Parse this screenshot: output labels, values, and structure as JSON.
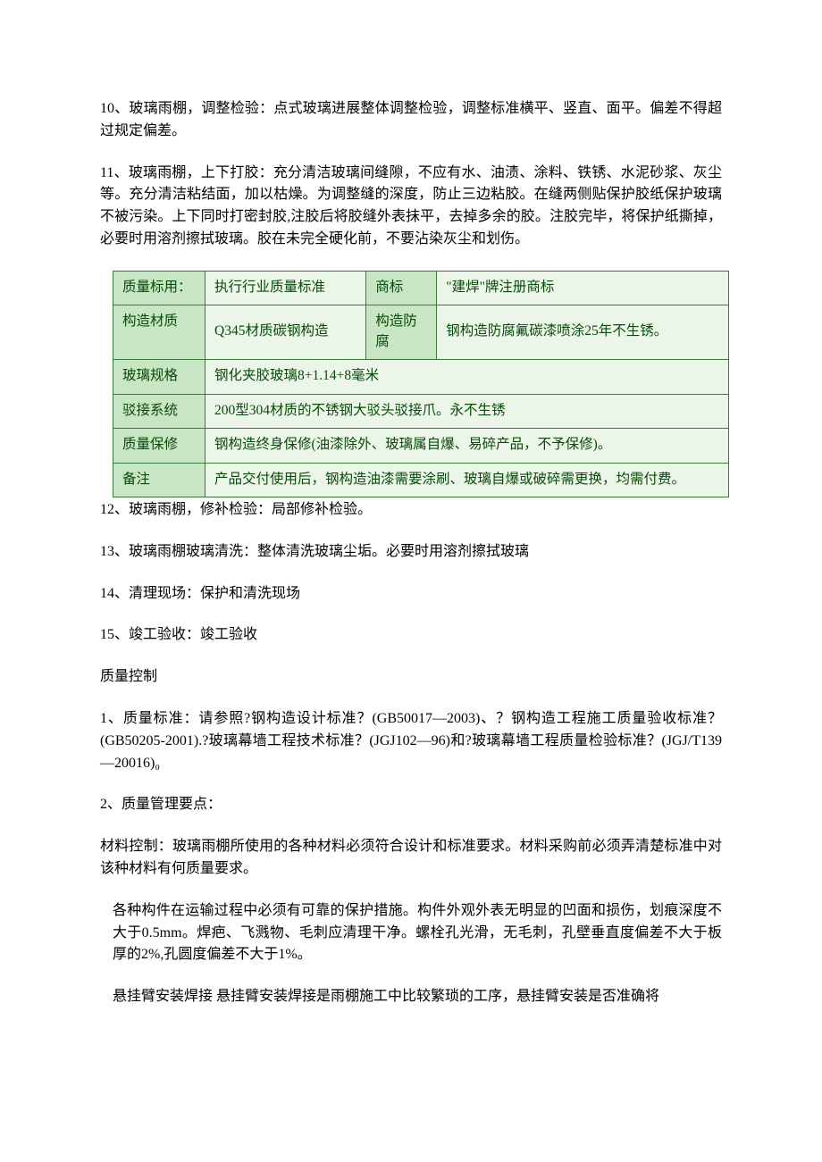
{
  "p10": "10、玻璃雨棚，调整检验：点式玻璃进展整体调整检验，调整标准横平、竖直、面平。偏差不得超过规定偏差。",
  "p11": "11、玻璃雨棚，上下打胶：充分清洁玻璃间缝隙，不应有水、油渍、涂料、铁锈、水泥砂浆、灰尘等。充分清洁粘结面，加以枯燥。为调整缝的深度，防止三边粘胶。在缝两侧贴保护胶纸保护玻璃不被污染。上下同时打密封胶,注胶后将胶缝外表抹平，去掉多余的胶。注胶完毕，将保护纸撕掉，必要时用溶剂擦拭玻璃。胶在未完全硬化前，不要沾染灰尘和划伤。",
  "table": {
    "r1c1": "质量标用：",
    "r1c2": "执行行业质量标准",
    "r1c3": "商标",
    "r1c4": "\"建焊\"牌注册商标",
    "r2c1": "构造材质",
    "r2c2": "Q345材质碳钢构造",
    "r2c3": "构造防腐",
    "r2c4": "钢构造防腐氟碳漆喷涂25年不生锈。",
    "r3c1": "玻璃规格",
    "r3c2": "钢化夹胶玻璃8+1.14+8毫米",
    "r4c1": "驳接系统",
    "r4c2": "200型304材质的不锈钢大驳头驳接爪。永不生锈",
    "r5c1": "质量保修",
    "r5c2": "钢构造终身保修(油漆除外、玻璃属自爆、易碎产品，不予保修)。",
    "r6c1": "备注",
    "r6c2": "产品交付使用后，钢构造油漆需要涂刷、玻璃自爆或破碎需更换，均需付费。"
  },
  "p12": "12、玻璃雨棚，修补检验：局部修补检验。",
  "p13": "13、玻璃雨棚玻璃清洗：整体清洗玻璃尘垢。必要时用溶剂擦拭玻璃",
  "p14": "14、清理现场：保护和清洗现场",
  "p15": "15、竣工验收：竣工验收",
  "quality_title": "质量控制",
  "q1": "1、质量标准：请参照?钢构造设计标准？(GB50017—2003)、？钢构造工程施工质量验收标准？(GB50205-2001).?玻璃幕墙工程技术标准？(JGJ102—96)和?玻璃幕墙工程质量检验标准？(JGJ/T139—20016)₀",
  "q2": "2、质量管理要点：",
  "mat": "材料控制：玻璃雨棚所使用的各种材料必须符合设计和标准要求。材料采购前必须弄清楚标准中对该种材料有何质量要求。",
  "ind1": "各种构件在运输过程中必须有可靠的保护措施。构件外观外表无明显的凹面和损伤，划痕深度不大于0.5mm。焊疤、飞溅物、毛刺应清理干净。螺栓孔光滑，无毛刺，孔壁垂直度偏差不大于板厚的2%,孔圆度偏差不大于1%。",
  "ind2": "悬挂臂安装焊接 悬挂臂安装焊接是雨棚施工中比较繁琐的工序，悬挂臂安装是否准确将"
}
